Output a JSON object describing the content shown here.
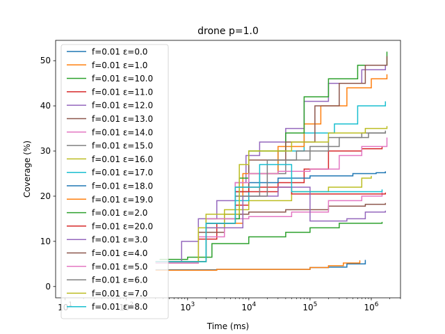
{
  "chart_data": {
    "type": "line",
    "title": "drone p=1.0",
    "xlabel": "Time (ms)",
    "ylabel": "Coverage (%)",
    "xscale": "log",
    "xlim": [
      7,
      3000000
    ],
    "ylim": [
      -2.5,
      54.5
    ],
    "x_ticks": [
      {
        "value": 10,
        "base": "10",
        "exp": "1"
      },
      {
        "value": 100,
        "base": "10",
        "exp": "2"
      },
      {
        "value": 1000,
        "base": "10",
        "exp": "3"
      },
      {
        "value": 10000,
        "base": "10",
        "exp": "4"
      },
      {
        "value": 100000,
        "base": "10",
        "exp": "5"
      },
      {
        "value": 1000000,
        "base": "10",
        "exp": "6"
      }
    ],
    "y_ticks": [
      "0",
      "10",
      "20",
      "30",
      "40",
      "50"
    ],
    "legend_position": "upper-left",
    "grid": false,
    "series": [
      {
        "name": "f=0.01 ε=0.0",
        "color": "#1f77b4",
        "points": [
          [
            300,
            3.7
          ],
          [
            3000,
            3.8
          ],
          [
            100000,
            4.2
          ],
          [
            200000,
            4.3
          ],
          [
            400000,
            5
          ],
          [
            800000,
            5.9
          ]
        ]
      },
      {
        "name": "f=0.01 ε=1.0",
        "color": "#ff7f0e",
        "points": [
          [
            300,
            3.6
          ],
          [
            3000,
            3.8
          ],
          [
            100000,
            4.2
          ],
          [
            200000,
            4.6
          ],
          [
            350000,
            5.2
          ],
          [
            650000,
            5.8
          ]
        ]
      },
      {
        "name": "f=0.01 ε=10.0",
        "color": "#2ca02c",
        "points": [
          [
            350,
            6
          ],
          [
            1000,
            6.5
          ],
          [
            2500,
            9.5
          ],
          [
            10000,
            11
          ],
          [
            40000,
            12
          ],
          [
            100000,
            13
          ],
          [
            300000,
            14
          ],
          [
            1500000,
            14.3
          ]
        ]
      },
      {
        "name": "f=0.01 ε=11.0",
        "color": "#d62728",
        "points": [
          [
            300,
            5.5
          ],
          [
            1500,
            10.5
          ],
          [
            3000,
            14
          ],
          [
            6000,
            18
          ],
          [
            10000,
            21
          ],
          [
            30000,
            23
          ],
          [
            80000,
            26
          ],
          [
            200000,
            30
          ],
          [
            700000,
            30.5
          ],
          [
            1500000,
            31
          ]
        ]
      },
      {
        "name": "f=0.01 ε=12.0",
        "color": "#9467bd",
        "points": [
          [
            300,
            5.5
          ],
          [
            800,
            10
          ],
          [
            1500,
            15
          ],
          [
            3000,
            19
          ],
          [
            6000,
            23
          ],
          [
            9000,
            29
          ],
          [
            15000,
            32
          ],
          [
            40000,
            35
          ],
          [
            80000,
            41
          ],
          [
            200000,
            45
          ],
          [
            700000,
            48
          ],
          [
            1700000,
            49
          ]
        ]
      },
      {
        "name": "f=0.01 ε=13.0",
        "color": "#8c564b",
        "points": [
          [
            300,
            5.2
          ],
          [
            1500,
            12
          ],
          [
            4000,
            16
          ],
          [
            10000,
            16.5
          ],
          [
            40000,
            17
          ],
          [
            200000,
            17.8
          ],
          [
            800000,
            18.2
          ],
          [
            1700000,
            18.5
          ]
        ]
      },
      {
        "name": "f=0.01 ε=14.0",
        "color": "#e377c2",
        "points": [
          [
            300,
            5.2
          ],
          [
            1500,
            11
          ],
          [
            4000,
            15
          ],
          [
            10000,
            15.5
          ],
          [
            50000,
            16.5
          ],
          [
            200000,
            19
          ],
          [
            700000,
            20
          ],
          [
            1500000,
            21
          ]
        ]
      },
      {
        "name": "f=0.01 ε=15.0",
        "color": "#7f7f7f",
        "points": [
          [
            300,
            5.5
          ],
          [
            2000,
            14
          ],
          [
            6000,
            20
          ],
          [
            15000,
            25
          ],
          [
            40000,
            28
          ],
          [
            100000,
            31
          ],
          [
            300000,
            33
          ],
          [
            900000,
            34
          ],
          [
            1700000,
            34.5
          ]
        ]
      },
      {
        "name": "f=0.01 ε=16.0",
        "color": "#bcbd22",
        "points": [
          [
            300,
            5.5
          ],
          [
            1500,
            13
          ],
          [
            4000,
            17
          ],
          [
            10000,
            19
          ],
          [
            50000,
            21
          ],
          [
            200000,
            22
          ],
          [
            700000,
            24
          ],
          [
            1000000,
            24.5
          ]
        ]
      },
      {
        "name": "f=0.01 ε=17.0",
        "color": "#17becf",
        "points": [
          [
            300,
            5.5
          ],
          [
            2000,
            14
          ],
          [
            6000,
            19
          ],
          [
            10000,
            25
          ],
          [
            30000,
            30
          ],
          [
            80000,
            34
          ],
          [
            250000,
            36
          ],
          [
            600000,
            40
          ],
          [
            1700000,
            41
          ]
        ]
      },
      {
        "name": "f=0.01 ε=18.0",
        "color": "#1f77b4",
        "points": [
          [
            300,
            5.5
          ],
          [
            2000,
            14
          ],
          [
            6000,
            21
          ],
          [
            10000,
            23
          ],
          [
            30000,
            24
          ],
          [
            100000,
            24.5
          ],
          [
            500000,
            25
          ],
          [
            1200000,
            25.2
          ],
          [
            1700000,
            25.5
          ]
        ]
      },
      {
        "name": "f=0.01 ε=19.0",
        "color": "#ff7f0e",
        "points": [
          [
            300,
            5.5
          ],
          [
            2000,
            14
          ],
          [
            8000,
            25
          ],
          [
            30000,
            31
          ],
          [
            80000,
            36
          ],
          [
            150000,
            40
          ],
          [
            400000,
            44
          ],
          [
            1000000,
            46
          ],
          [
            1800000,
            47
          ]
        ]
      },
      {
        "name": "f=0.01 ε=2.0",
        "color": "#2ca02c",
        "points": [
          [
            300,
            5.5
          ],
          [
            2000,
            15
          ],
          [
            7000,
            24
          ],
          [
            10000,
            30
          ],
          [
            40000,
            34
          ],
          [
            80000,
            42
          ],
          [
            200000,
            46
          ],
          [
            600000,
            49
          ],
          [
            1800000,
            52
          ]
        ]
      },
      {
        "name": "f=0.01 ε=20.0",
        "color": "#d62728",
        "points": [
          [
            300,
            5.5
          ],
          [
            2000,
            14
          ],
          [
            6000,
            21
          ],
          [
            10000,
            22
          ],
          [
            50000,
            20.5
          ],
          [
            300000,
            20.5
          ],
          [
            1000000,
            20.5
          ],
          [
            1700000,
            20.8
          ]
        ]
      },
      {
        "name": "f=0.01 ε=3.0",
        "color": "#9467bd",
        "points": [
          [
            300,
            5.5
          ],
          [
            2000,
            13
          ],
          [
            8000,
            20
          ],
          [
            30000,
            22
          ],
          [
            100000,
            14.5
          ],
          [
            400000,
            15
          ],
          [
            800000,
            16.5
          ],
          [
            1700000,
            16.8
          ]
        ]
      },
      {
        "name": "f=0.01 ε=4.0",
        "color": "#8c564b",
        "points": [
          [
            300,
            5.5
          ],
          [
            2000,
            14
          ],
          [
            6000,
            22
          ],
          [
            10000,
            28
          ],
          [
            40000,
            32
          ],
          [
            120000,
            40
          ],
          [
            300000,
            45
          ],
          [
            800000,
            49
          ],
          [
            1800000,
            51
          ]
        ]
      },
      {
        "name": "f=0.01 ε=5.0",
        "color": "#e377c2",
        "points": [
          [
            300,
            5.5
          ],
          [
            2000,
            15
          ],
          [
            6000,
            23
          ],
          [
            10000,
            25
          ],
          [
            30000,
            25.5
          ],
          [
            100000,
            26
          ],
          [
            300000,
            29
          ],
          [
            700000,
            31
          ],
          [
            1800000,
            33
          ]
        ]
      },
      {
        "name": "f=0.01 ε=6.0",
        "color": "#7f7f7f",
        "points": [
          [
            300,
            5.5
          ],
          [
            2000,
            14
          ],
          [
            6000,
            20
          ],
          [
            20000,
            28
          ],
          [
            60000,
            30
          ],
          [
            200000,
            33
          ],
          [
            700000,
            34
          ],
          [
            1700000,
            34.2
          ]
        ]
      },
      {
        "name": "f=0.01 ε=7.0",
        "color": "#bcbd22",
        "points": [
          [
            300,
            5.5
          ],
          [
            2000,
            16
          ],
          [
            7000,
            27
          ],
          [
            10000,
            30
          ],
          [
            50000,
            32
          ],
          [
            200000,
            34
          ],
          [
            800000,
            35
          ],
          [
            1800000,
            35.5
          ]
        ]
      },
      {
        "name": "f=0.01 ε=8.0",
        "color": "#17becf",
        "points": [
          [
            300,
            5.5
          ],
          [
            2000,
            14
          ],
          [
            6000,
            22
          ],
          [
            15000,
            27
          ],
          [
            50000,
            21
          ],
          [
            200000,
            21
          ],
          [
            600000,
            21
          ],
          [
            1500000,
            21.5
          ]
        ]
      }
    ]
  }
}
